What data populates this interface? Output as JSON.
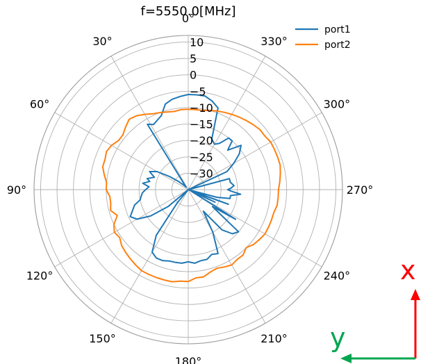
{
  "chart_data": {
    "type": "polar-line",
    "title": "f=5550.0[MHz]",
    "r_range": [
      -35,
      12
    ],
    "r_ticks": [
      10,
      5,
      0,
      -5,
      -10,
      -15,
      -20,
      -25,
      -30
    ],
    "r_tick_labels": [
      "10",
      "5",
      "0",
      "−5",
      "−10",
      "−15",
      "−20",
      "−25",
      "−30"
    ],
    "angle_ticks": [
      0,
      30,
      60,
      90,
      120,
      150,
      180,
      210,
      240,
      270,
      300,
      330
    ],
    "angle_tick_labels": [
      "0°",
      "30°",
      "60°",
      "90°",
      "120°",
      "150°",
      "180°",
      "210°",
      "240°",
      "270°",
      "300°",
      "330°"
    ],
    "angle_direction": "counterclockwise",
    "zero_location": "top",
    "grid": true,
    "legend": "top-right",
    "series": [
      {
        "name": "port1",
        "color": "#1f77b4",
        "theta_deg": [
          0,
          5,
          10,
          15,
          20,
          25,
          28,
          32,
          36,
          40,
          45,
          50,
          55,
          60,
          65,
          70,
          75,
          78,
          82,
          86,
          90,
          94,
          98,
          102,
          106,
          110,
          115,
          120,
          125,
          130,
          135,
          140,
          145,
          150,
          155,
          160,
          165,
          170,
          175,
          180,
          185,
          190,
          195,
          200,
          205,
          210,
          215,
          220,
          225,
          230,
          235,
          238,
          242,
          245,
          248,
          250,
          252,
          255,
          258,
          262,
          265,
          268,
          270,
          272,
          275,
          280,
          285,
          290,
          295,
          300,
          305,
          310,
          315,
          318,
          322,
          326,
          330,
          335,
          340,
          345,
          350,
          355,
          360
        ],
        "r_db": [
          -6,
          -6.5,
          -7,
          -8,
          -11,
          -12,
          -12.5,
          -11.5,
          -33,
          -34,
          -33,
          -31,
          -28,
          -24,
          -22,
          -24,
          -22,
          -23,
          -21,
          -23,
          -22,
          -21,
          -20.5,
          -20,
          -18,
          -17,
          -15.5,
          -17,
          -21,
          -27,
          -35,
          -30,
          -18,
          -13,
          -12,
          -12,
          -12.5,
          -12.5,
          -12.5,
          -13,
          -12.5,
          -13,
          -13,
          -14,
          -13.5,
          -20,
          -27,
          -19,
          -16,
          -15,
          -26,
          -18,
          -34,
          -26,
          -34,
          -22,
          -35,
          -26,
          -22,
          -22,
          -19,
          -22,
          -23,
          -22,
          -21,
          -22,
          -22,
          -35,
          -22,
          -19,
          -16,
          -14,
          -18,
          -15,
          -15,
          -18,
          -19,
          -18,
          -8.5,
          -7,
          -6,
          -6,
          -6
        ]
      },
      {
        "name": "port2",
        "color": "#ff7f0e",
        "theta_deg": [
          0,
          5,
          10,
          15,
          20,
          25,
          30,
          35,
          40,
          45,
          50,
          55,
          60,
          65,
          70,
          75,
          80,
          85,
          90,
          95,
          100,
          105,
          110,
          115,
          120,
          125,
          130,
          135,
          140,
          145,
          150,
          155,
          160,
          165,
          170,
          175,
          180,
          185,
          190,
          195,
          200,
          205,
          210,
          215,
          220,
          225,
          230,
          235,
          240,
          245,
          250,
          255,
          260,
          265,
          270,
          275,
          280,
          285,
          290,
          295,
          300,
          305,
          310,
          315,
          320,
          325,
          330,
          335,
          340,
          345,
          350,
          355,
          360
        ],
        "r_db": [
          -10.5,
          -10.5,
          -10.8,
          -10.5,
          -10,
          -9.5,
          -8.5,
          -7.5,
          -7,
          -8,
          -9,
          -9,
          -8,
          -7.5,
          -8,
          -8,
          -9,
          -10,
          -10,
          -11,
          -11,
          -10.5,
          -12,
          -10,
          -9,
          -9.5,
          -8.5,
          -8,
          -7.5,
          -7,
          -6.5,
          -6.5,
          -6.5,
          -6.5,
          -6.5,
          -7,
          -7,
          -8,
          -8,
          -9,
          -9.5,
          -9,
          -8.5,
          -9,
          -9,
          -10,
          -9,
          -8.5,
          -8,
          -8,
          -8,
          -8,
          -7.5,
          -7.5,
          -7.5,
          -7,
          -6.5,
          -6,
          -6,
          -6,
          -6,
          -6.5,
          -6.5,
          -7,
          -7.5,
          -8,
          -8.5,
          -9,
          -9.5,
          -10,
          -10.5,
          -10.5,
          -10.5
        ]
      }
    ],
    "axes_indicator": {
      "x_label": "x",
      "y_label": "y",
      "x_color": "#ff0000",
      "y_color": "#00a651"
    }
  }
}
